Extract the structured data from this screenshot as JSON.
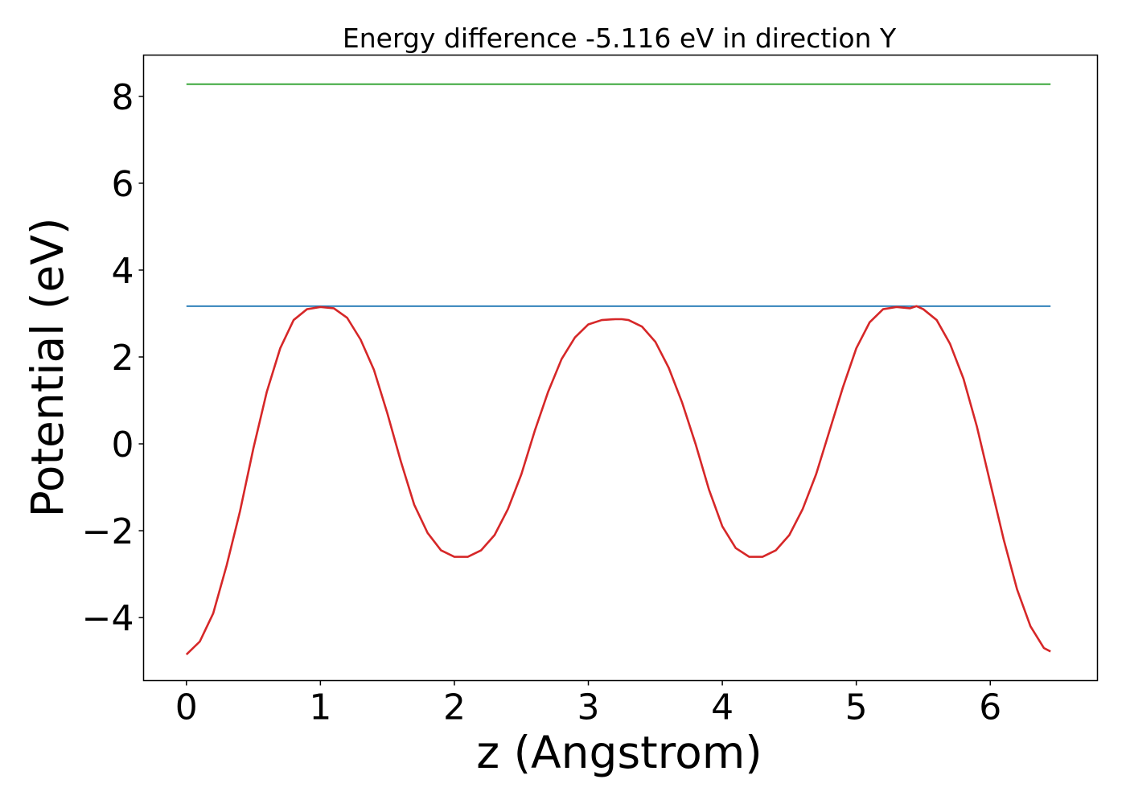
{
  "chart_data": {
    "type": "line",
    "title": "Energy difference -5.116 eV in direction Y",
    "xlabel": "z (Angstrom)",
    "ylabel": "Potential (eV)",
    "xlim": [
      -0.32,
      6.8
    ],
    "ylim": [
      -5.45,
      8.95
    ],
    "xticks": [
      0,
      1,
      2,
      3,
      4,
      5,
      6
    ],
    "xtick_labels": [
      "0",
      "1",
      "2",
      "3",
      "4",
      "5",
      "6"
    ],
    "yticks": [
      -4,
      -2,
      0,
      2,
      4,
      6,
      8
    ],
    "ytick_labels": [
      "−4",
      "−2",
      "0",
      "2",
      "4",
      "6",
      "8"
    ],
    "grid": false,
    "series": [
      {
        "color": "#2ca02c",
        "x": [
          0,
          6.45
        ],
        "y": [
          8.28,
          8.28
        ]
      },
      {
        "color": "#1f77b4",
        "x": [
          0,
          6.45
        ],
        "y": [
          3.17,
          3.17
        ]
      },
      {
        "color": "#d62728",
        "x": [
          0,
          0.1,
          0.2,
          0.3,
          0.4,
          0.5,
          0.6,
          0.7,
          0.8,
          0.9,
          1.0,
          1.1,
          1.2,
          1.3,
          1.4,
          1.5,
          1.6,
          1.7,
          1.8,
          1.9,
          2.0,
          2.1,
          2.2,
          2.3,
          2.4,
          2.5,
          2.6,
          2.7,
          2.8,
          2.9,
          3.0,
          3.1,
          3.2,
          3.25,
          3.3,
          3.4,
          3.5,
          3.6,
          3.7,
          3.8,
          3.9,
          4.0,
          4.1,
          4.2,
          4.3,
          4.4,
          4.5,
          4.6,
          4.7,
          4.8,
          4.9,
          5.0,
          5.1,
          5.2,
          5.3,
          5.4,
          5.45,
          5.5,
          5.6,
          5.7,
          5.8,
          5.9,
          6.0,
          6.1,
          6.2,
          6.3,
          6.4,
          6.45
        ],
        "y": [
          -4.85,
          -4.55,
          -3.9,
          -2.8,
          -1.55,
          -0.1,
          1.2,
          2.2,
          2.85,
          3.1,
          3.15,
          3.12,
          2.9,
          2.4,
          1.7,
          0.7,
          -0.4,
          -1.4,
          -2.05,
          -2.45,
          -2.6,
          -2.6,
          -2.45,
          -2.1,
          -1.5,
          -0.7,
          0.3,
          1.2,
          1.95,
          2.45,
          2.75,
          2.85,
          2.87,
          2.87,
          2.85,
          2.7,
          2.35,
          1.75,
          0.95,
          0.0,
          -1.05,
          -1.9,
          -2.4,
          -2.6,
          -2.6,
          -2.45,
          -2.1,
          -1.5,
          -0.7,
          0.3,
          1.3,
          2.2,
          2.8,
          3.1,
          3.15,
          3.12,
          3.17,
          3.1,
          2.85,
          2.3,
          1.5,
          0.4,
          -0.9,
          -2.2,
          -3.35,
          -4.2,
          -4.7,
          -4.78
        ]
      }
    ]
  }
}
